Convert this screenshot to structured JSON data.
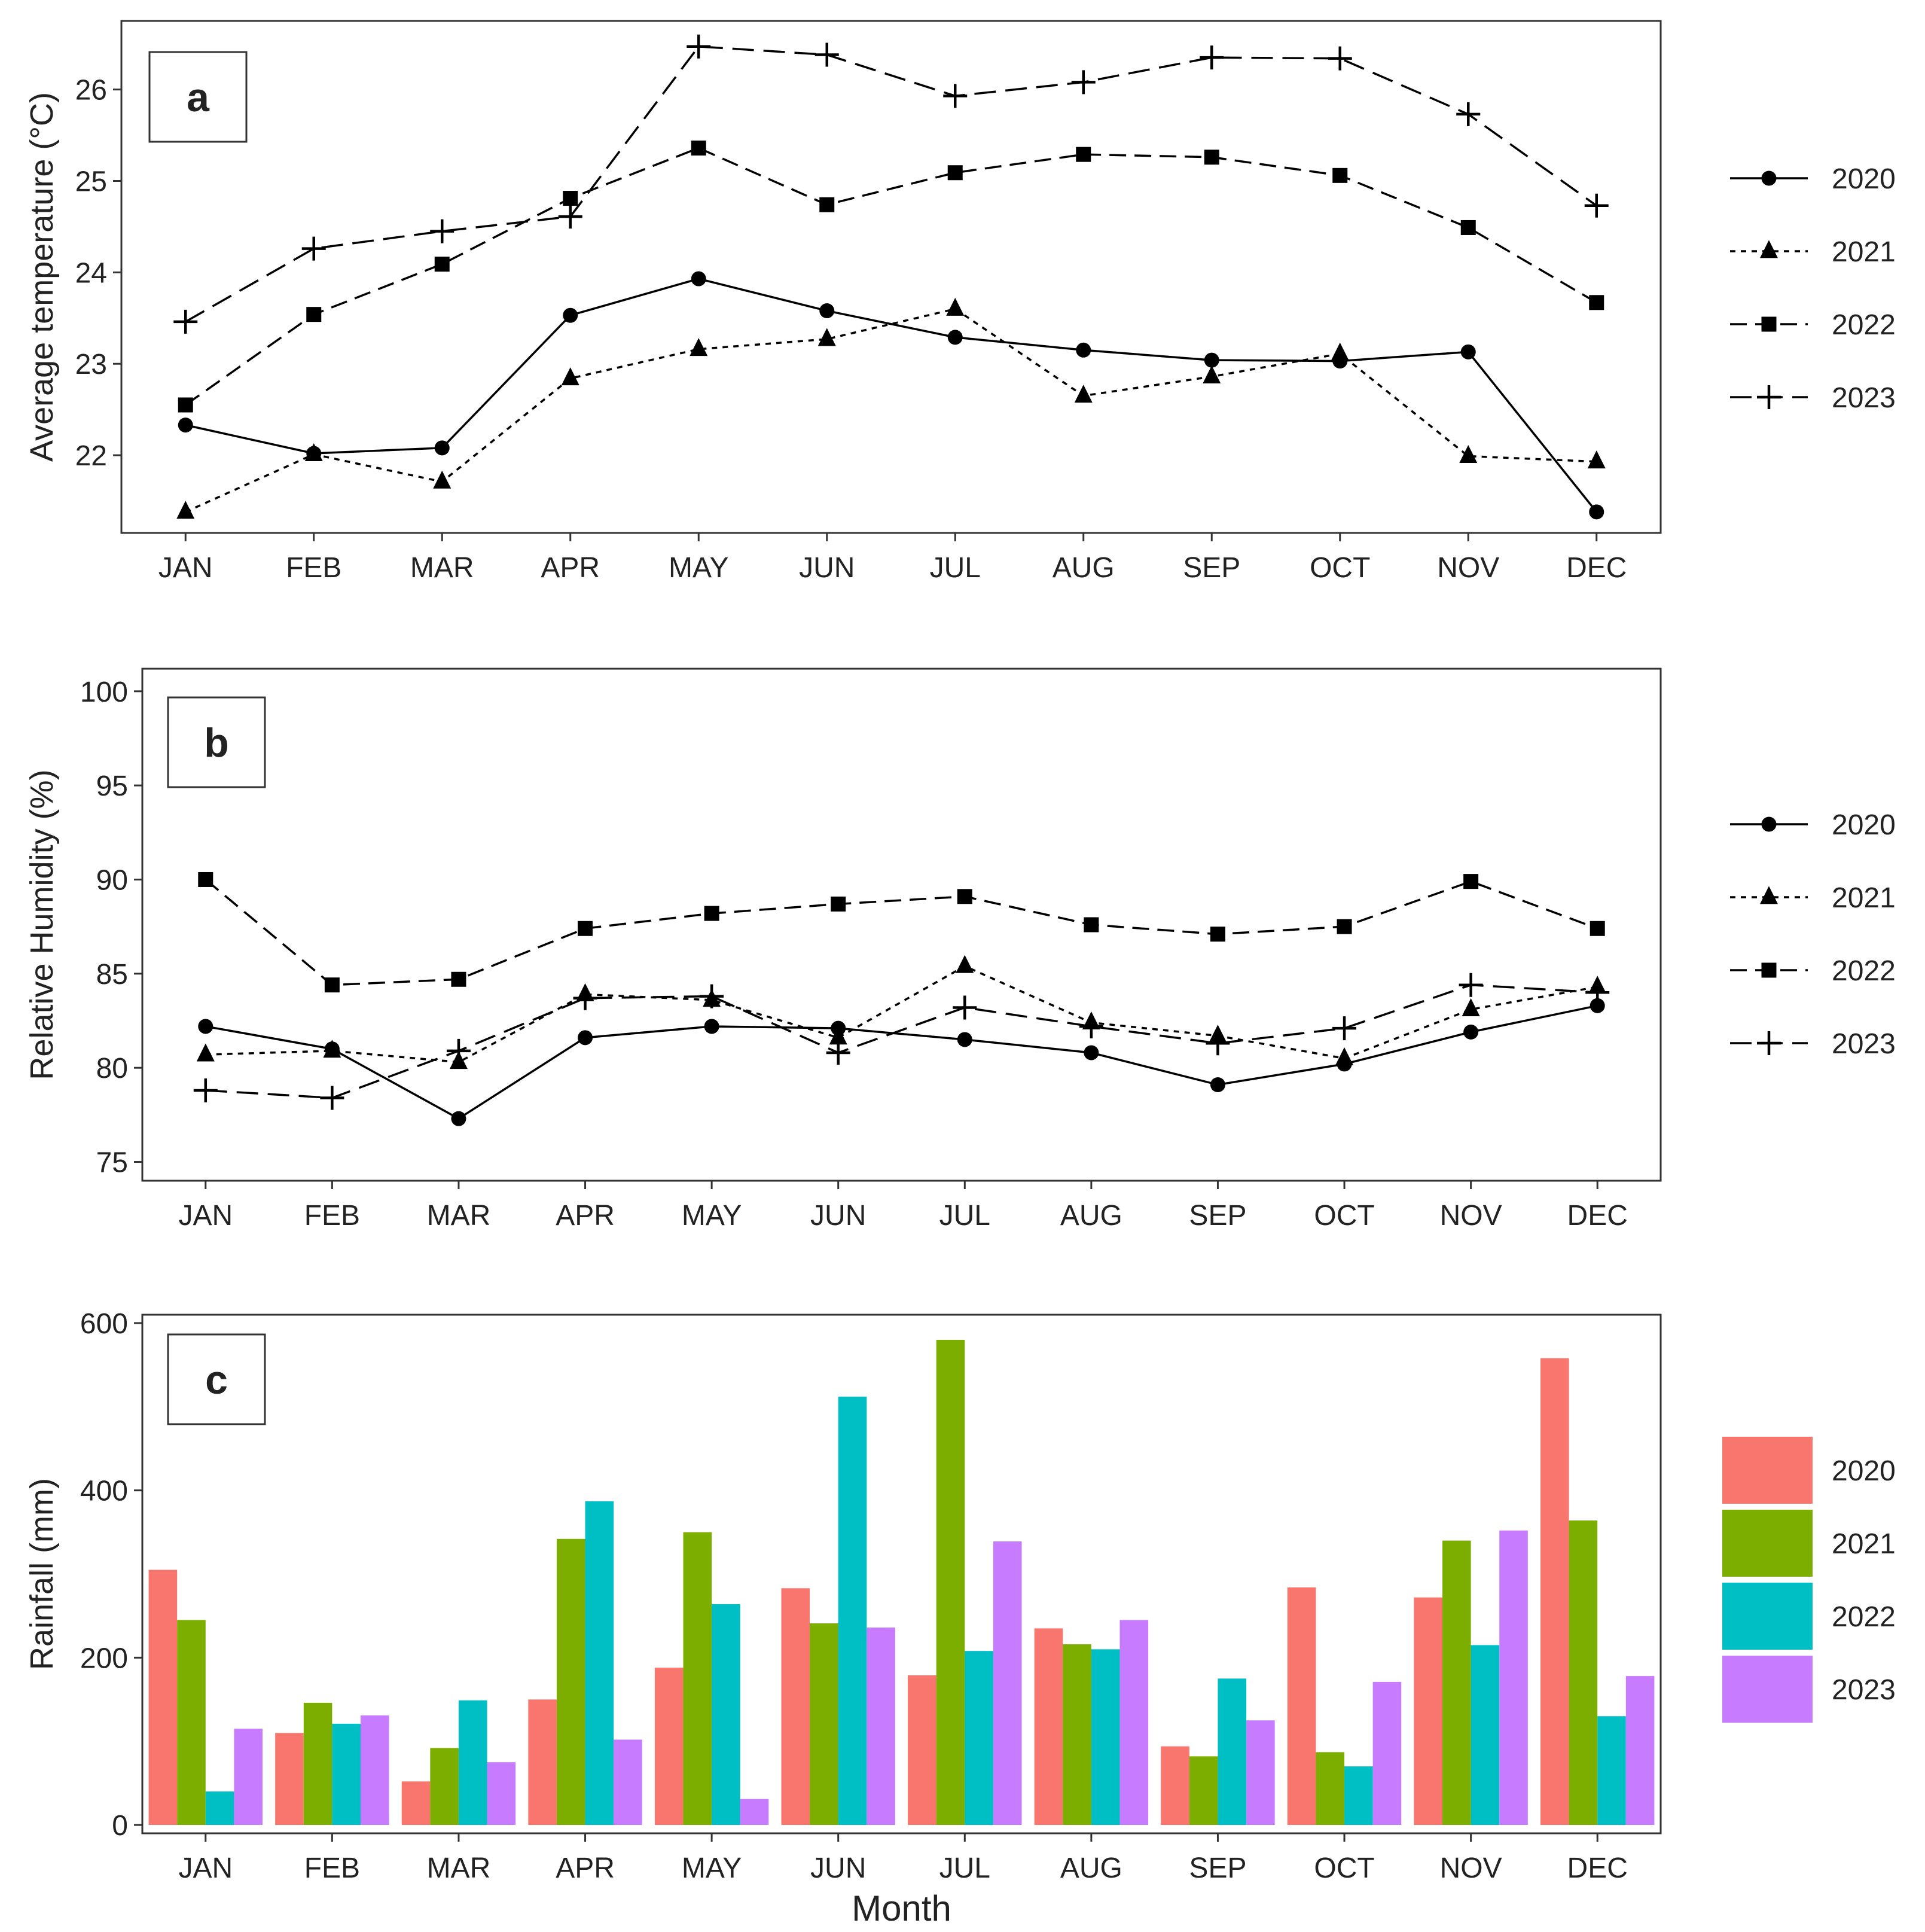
{
  "chart_data": [
    {
      "id": "a",
      "type": "line",
      "panel_label": "a",
      "ylabel": "Average temperature (°C)",
      "xlabel": "",
      "categories": [
        "JAN",
        "FEB",
        "MAR",
        "APR",
        "MAY",
        "JUN",
        "JUL",
        "AUG",
        "SEP",
        "OCT",
        "NOV",
        "DEC"
      ],
      "ylim": [
        21.15,
        26.75
      ],
      "yticks": [
        22,
        23,
        24,
        25,
        26
      ],
      "grid": false,
      "legend": "right",
      "series": [
        {
          "name": "2020",
          "marker": "circle",
          "linestyle": "solid",
          "values": [
            22.33,
            22.02,
            22.08,
            23.53,
            23.93,
            23.58,
            23.29,
            23.15,
            23.04,
            23.03,
            23.13,
            21.38
          ]
        },
        {
          "name": "2021",
          "marker": "triangle",
          "linestyle": "dotted",
          "values": [
            21.38,
            22.01,
            21.71,
            22.84,
            23.16,
            23.27,
            23.6,
            22.65,
            22.86,
            23.11,
            21.99,
            21.93
          ]
        },
        {
          "name": "2022",
          "marker": "square",
          "linestyle": "dashed",
          "values": [
            22.55,
            23.54,
            24.09,
            24.81,
            25.36,
            24.74,
            25.09,
            25.29,
            25.26,
            25.06,
            24.49,
            23.67
          ]
        },
        {
          "name": "2023",
          "marker": "plus",
          "linestyle": "longdash",
          "values": [
            23.46,
            24.26,
            24.45,
            24.61,
            26.47,
            26.38,
            25.93,
            26.08,
            26.35,
            26.34,
            25.73,
            24.73
          ]
        }
      ]
    },
    {
      "id": "b",
      "type": "line",
      "panel_label": "b",
      "ylabel": "Relative Humidity (%)",
      "xlabel": "",
      "categories": [
        "JAN",
        "FEB",
        "MAR",
        "APR",
        "MAY",
        "JUN",
        "JUL",
        "AUG",
        "SEP",
        "OCT",
        "NOV",
        "DEC"
      ],
      "ylim": [
        74,
        101.2
      ],
      "yticks": [
        75,
        80,
        85,
        90,
        95,
        100
      ],
      "grid": false,
      "legend": "right",
      "series": [
        {
          "name": "2020",
          "marker": "circle",
          "linestyle": "solid",
          "values": [
            82.2,
            81.0,
            77.3,
            81.6,
            82.2,
            82.1,
            81.5,
            80.8,
            79.1,
            80.2,
            81.9,
            83.3
          ]
        },
        {
          "name": "2021",
          "marker": "triangle",
          "linestyle": "dotted",
          "values": [
            80.7,
            80.9,
            80.3,
            83.9,
            83.6,
            81.6,
            85.4,
            82.4,
            81.7,
            80.5,
            83.1,
            84.3
          ]
        },
        {
          "name": "2022",
          "marker": "square",
          "linestyle": "dashed",
          "values": [
            90.0,
            84.4,
            84.7,
            87.4,
            88.2,
            88.7,
            89.1,
            87.6,
            87.1,
            87.5,
            89.9,
            87.4
          ]
        },
        {
          "name": "2023",
          "marker": "plus",
          "linestyle": "longdash",
          "values": [
            78.8,
            78.4,
            80.9,
            83.7,
            83.8,
            80.8,
            83.2,
            82.2,
            81.3,
            82.1,
            84.4,
            84.0
          ]
        }
      ]
    },
    {
      "id": "c",
      "type": "bar",
      "panel_label": "c",
      "ylabel": "Rainfall (mm)",
      "xlabel": "Month",
      "categories": [
        "JAN",
        "FEB",
        "MAR",
        "APR",
        "MAY",
        "JUN",
        "JUL",
        "AUG",
        "SEP",
        "OCT",
        "NOV",
        "DEC"
      ],
      "ylim": [
        -10,
        610
      ],
      "yticks": [
        0,
        200,
        400,
        600
      ],
      "grid": false,
      "legend": "right",
      "series": [
        {
          "name": "2020",
          "color": "#F8766D",
          "values": [
            305,
            110,
            52,
            150,
            188,
            283,
            179,
            235,
            94,
            284,
            272,
            558
          ]
        },
        {
          "name": "2021",
          "color": "#7CAE00",
          "values": [
            245,
            146,
            92,
            342,
            350,
            241,
            580,
            216,
            82,
            87,
            340,
            364
          ]
        },
        {
          "name": "2022",
          "color": "#00BFC4",
          "values": [
            40,
            121,
            149,
            387,
            264,
            512,
            208,
            210,
            175,
            70,
            215,
            130
          ]
        },
        {
          "name": "2023",
          "color": "#C77CFF",
          "values": [
            115,
            131,
            75,
            102,
            31,
            236,
            339,
            245,
            125,
            171,
            352,
            178
          ]
        }
      ]
    }
  ]
}
